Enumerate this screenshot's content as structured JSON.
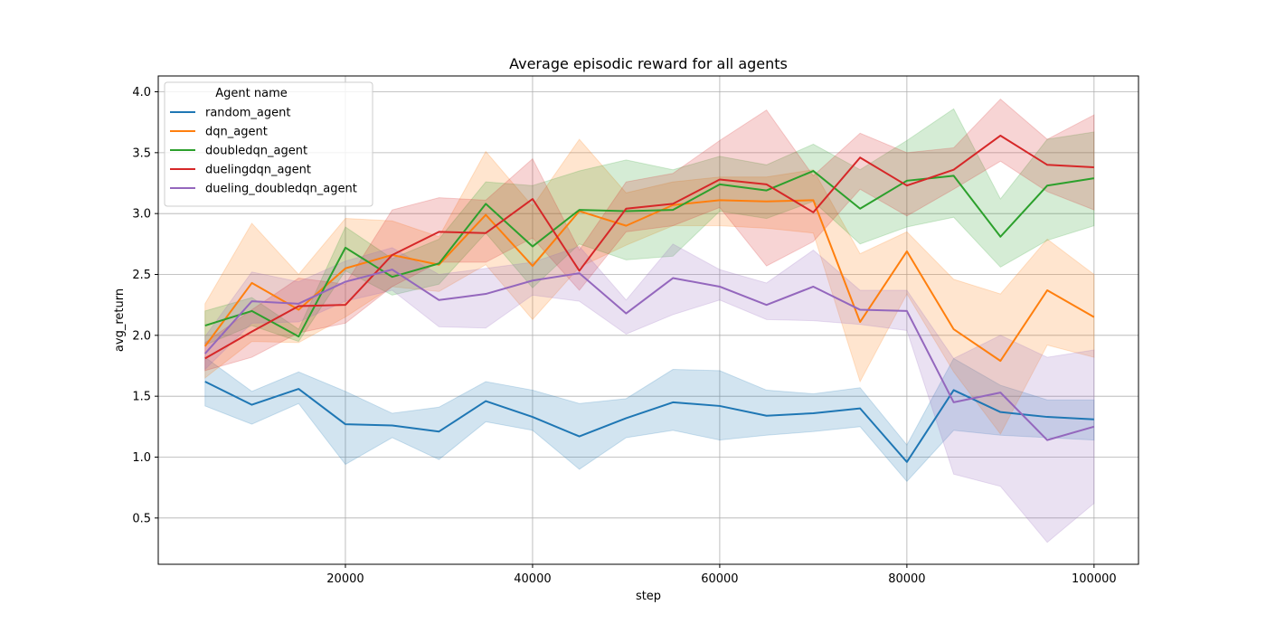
{
  "chart_data": {
    "type": "line",
    "title": "Average episodic reward for all agents",
    "xlabel": "step",
    "ylabel": "avg_return",
    "xlim": [
      0,
      104750
    ],
    "ylim": [
      0.12,
      4.13
    ],
    "xticks": [
      20000,
      40000,
      60000,
      80000,
      100000
    ],
    "yticks": [
      0.5,
      1.0,
      1.5,
      2.0,
      2.5,
      3.0,
      3.5,
      4.0
    ],
    "grid": true,
    "legend": {
      "title": "Agent name",
      "placement": "top-left"
    },
    "x": [
      5000,
      10000,
      15000,
      20000,
      25000,
      30000,
      35000,
      40000,
      45000,
      50000,
      55000,
      60000,
      65000,
      70000,
      75000,
      80000,
      85000,
      90000,
      95000,
      100000
    ],
    "series": [
      {
        "name": "random_agent",
        "color": "#1f77b4",
        "values": [
          1.62,
          1.43,
          1.56,
          1.27,
          1.26,
          1.21,
          1.46,
          1.33,
          1.17,
          1.32,
          1.45,
          1.42,
          1.34,
          1.36,
          1.4,
          0.96,
          1.55,
          1.37,
          1.33,
          1.31
        ],
        "lower": [
          1.42,
          1.27,
          1.44,
          0.94,
          1.16,
          0.98,
          1.29,
          1.22,
          0.9,
          1.16,
          1.22,
          1.14,
          1.18,
          1.21,
          1.25,
          0.8,
          1.22,
          1.18,
          1.16,
          1.14
        ],
        "upper": [
          1.82,
          1.54,
          1.7,
          1.54,
          1.36,
          1.41,
          1.62,
          1.55,
          1.44,
          1.48,
          1.72,
          1.71,
          1.55,
          1.52,
          1.57,
          1.1,
          1.81,
          1.59,
          1.47,
          1.47
        ]
      },
      {
        "name": "dqn_agent",
        "color": "#ff7f0e",
        "values": [
          1.91,
          2.43,
          2.21,
          2.55,
          2.66,
          2.58,
          2.99,
          2.57,
          3.02,
          2.9,
          3.07,
          3.11,
          3.1,
          3.11,
          2.11,
          2.69,
          2.05,
          1.79,
          2.37,
          2.15
        ],
        "lower": [
          1.65,
          1.95,
          1.94,
          2.15,
          2.4,
          2.36,
          2.58,
          2.13,
          2.56,
          2.74,
          2.9,
          2.9,
          2.88,
          2.84,
          1.62,
          2.34,
          1.7,
          1.19,
          1.92,
          1.82
        ],
        "upper": [
          2.26,
          2.92,
          2.5,
          2.96,
          2.94,
          2.81,
          3.51,
          3.06,
          3.61,
          3.17,
          3.26,
          3.3,
          3.3,
          3.36,
          2.67,
          2.85,
          2.46,
          2.34,
          2.79,
          2.5
        ]
      },
      {
        "name": "doubledqn_agent",
        "color": "#2ca02c",
        "values": [
          2.08,
          2.2,
          1.99,
          2.72,
          2.48,
          2.59,
          3.08,
          2.73,
          3.03,
          3.02,
          3.03,
          3.24,
          3.19,
          3.35,
          3.04,
          3.27,
          3.31,
          2.81,
          3.23,
          3.29
        ],
        "lower": [
          1.92,
          2.08,
          1.95,
          2.53,
          2.33,
          2.42,
          2.84,
          2.39,
          2.75,
          2.62,
          2.65,
          3.02,
          2.96,
          3.1,
          2.75,
          2.89,
          2.97,
          2.56,
          2.78,
          2.9
        ],
        "upper": [
          2.2,
          2.31,
          2.05,
          2.89,
          2.63,
          2.79,
          3.26,
          3.23,
          3.35,
          3.44,
          3.36,
          3.47,
          3.4,
          3.57,
          3.36,
          3.6,
          3.86,
          3.12,
          3.61,
          3.67
        ]
      },
      {
        "name": "duelingdqn_agent",
        "color": "#d62728",
        "values": [
          1.81,
          2.03,
          2.24,
          2.25,
          2.66,
          2.85,
          2.84,
          3.12,
          2.53,
          3.04,
          3.08,
          3.28,
          3.24,
          3.01,
          3.46,
          3.23,
          3.36,
          3.64,
          3.4,
          3.38
        ],
        "lower": [
          1.71,
          1.82,
          2.02,
          2.1,
          2.4,
          2.6,
          2.6,
          2.8,
          2.37,
          2.85,
          2.9,
          3.05,
          2.57,
          2.77,
          3.2,
          2.98,
          3.2,
          3.43,
          3.18,
          3.03
        ],
        "upper": [
          1.94,
          2.21,
          2.47,
          2.42,
          3.03,
          3.13,
          3.11,
          3.45,
          2.7,
          3.26,
          3.33,
          3.6,
          3.85,
          3.31,
          3.66,
          3.5,
          3.54,
          3.94,
          3.61,
          3.81
        ]
      },
      {
        "name": "dueling_doubledqn_agent",
        "color": "#9467bd",
        "values": [
          1.85,
          2.28,
          2.26,
          2.44,
          2.54,
          2.29,
          2.34,
          2.45,
          2.51,
          2.18,
          2.47,
          2.4,
          2.25,
          2.4,
          2.21,
          2.2,
          1.45,
          1.53,
          1.14,
          1.25
        ],
        "lower": [
          1.72,
          2.1,
          2.11,
          2.28,
          2.37,
          2.07,
          2.06,
          2.33,
          2.28,
          2.01,
          2.17,
          2.29,
          2.13,
          2.12,
          2.09,
          2.04,
          0.86,
          0.76,
          0.3,
          0.62
        ],
        "upper": [
          1.99,
          2.52,
          2.44,
          2.61,
          2.72,
          2.5,
          2.55,
          2.6,
          2.73,
          2.29,
          2.75,
          2.54,
          2.43,
          2.7,
          2.37,
          2.37,
          1.81,
          2.0,
          1.82,
          1.88
        ]
      }
    ]
  }
}
